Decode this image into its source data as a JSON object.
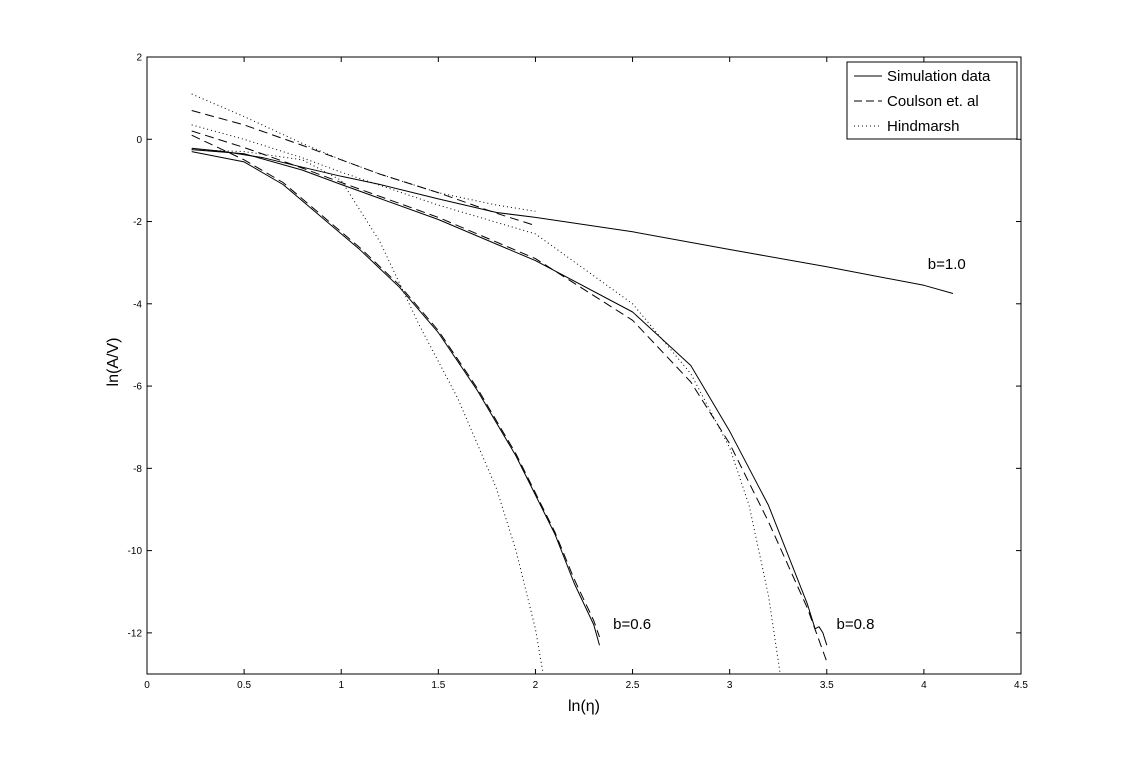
{
  "chart_data": {
    "type": "line",
    "title": "",
    "xlabel": "ln(η)",
    "ylabel": "ln(A/V)",
    "xlim": [
      0,
      4.5
    ],
    "ylim": [
      -13,
      2
    ],
    "xticks": [
      0,
      0.5,
      1,
      1.5,
      2,
      2.5,
      3,
      3.5,
      4,
      4.5
    ],
    "xtick_labels": [
      "0",
      "0.5",
      "1",
      "1.5",
      "2",
      "2.5",
      "3",
      "3.5",
      "4",
      "4.5"
    ],
    "yticks": [
      2,
      0,
      -2,
      -4,
      -6,
      -8,
      -10,
      -12
    ],
    "ytick_labels": [
      "2",
      "0",
      "-2",
      "-4",
      "-6",
      "-8",
      "-10",
      "-12"
    ],
    "grid": false,
    "legend": {
      "position": "top-right",
      "entries": [
        {
          "label": "Simulation data",
          "style": "solid"
        },
        {
          "label": "Coulson et. al",
          "style": "dashed"
        },
        {
          "label": "Hindmarsh",
          "style": "dotted"
        }
      ]
    },
    "annotations": [
      {
        "text": "b=1.0",
        "x": 4.02,
        "y": -3.15
      },
      {
        "text": "b=0.6",
        "x": 2.4,
        "y": -11.9
      },
      {
        "text": "b=0.8",
        "x": 3.55,
        "y": -11.9
      }
    ],
    "series": [
      {
        "group": "b=1.0",
        "style": "solid",
        "x": [
          0.23,
          0.4,
          0.6,
          0.8,
          1.0,
          1.2,
          1.5,
          1.8,
          2.0,
          2.5,
          3.0,
          3.5,
          4.0,
          4.15
        ],
        "y": [
          -0.22,
          -0.3,
          -0.45,
          -0.68,
          -0.9,
          -1.1,
          -1.45,
          -1.78,
          -1.9,
          -2.25,
          -2.68,
          -3.1,
          -3.55,
          -3.75
        ]
      },
      {
        "group": "b=1.0",
        "style": "dashed",
        "x": [
          0.23,
          0.5,
          0.8,
          1.0,
          1.2,
          1.5,
          1.8,
          2.0
        ],
        "y": [
          0.7,
          0.35,
          -0.15,
          -0.5,
          -0.85,
          -1.3,
          -1.8,
          -2.1
        ]
      },
      {
        "group": "b=1.0",
        "style": "dotted",
        "x": [
          0.23,
          0.5,
          0.8,
          1.0,
          1.2,
          1.5,
          1.8,
          2.0
        ],
        "y": [
          1.1,
          0.55,
          -0.1,
          -0.5,
          -0.85,
          -1.3,
          -1.6,
          -1.75
        ]
      },
      {
        "group": "b=0.8",
        "style": "solid",
        "x": [
          0.23,
          0.5,
          0.8,
          1.0,
          1.5,
          2.0,
          2.5,
          2.8,
          3.0,
          3.2,
          3.4,
          3.44,
          3.46,
          3.48,
          3.5
        ],
        "y": [
          -0.25,
          -0.35,
          -0.75,
          -1.1,
          -1.95,
          -2.95,
          -4.2,
          -5.5,
          -7.1,
          -8.9,
          -11.3,
          -11.9,
          -11.85,
          -12.0,
          -12.3
        ]
      },
      {
        "group": "b=0.8",
        "style": "dashed",
        "x": [
          0.23,
          0.5,
          0.8,
          1.0,
          1.5,
          2.0,
          2.5,
          2.8,
          3.0,
          3.2,
          3.4,
          3.5
        ],
        "y": [
          0.2,
          -0.2,
          -0.7,
          -1.05,
          -1.9,
          -2.9,
          -4.4,
          -5.9,
          -7.4,
          -9.3,
          -11.4,
          -12.7
        ]
      },
      {
        "group": "b=0.8",
        "style": "dotted",
        "x": [
          0.23,
          0.5,
          0.8,
          1.0,
          1.5,
          2.0,
          2.5,
          2.8,
          3.0,
          3.1,
          3.2,
          3.26
        ],
        "y": [
          0.35,
          0.0,
          -0.45,
          -0.8,
          -1.6,
          -2.3,
          -4.0,
          -5.7,
          -7.5,
          -8.9,
          -11.1,
          -13.0
        ]
      },
      {
        "group": "b=0.6",
        "style": "solid",
        "x": [
          0.23,
          0.5,
          0.7,
          0.9,
          1.1,
          1.3,
          1.5,
          1.7,
          1.9,
          2.1,
          2.2,
          2.3,
          2.33
        ],
        "y": [
          -0.3,
          -0.55,
          -1.1,
          -1.9,
          -2.7,
          -3.6,
          -4.7,
          -6.1,
          -7.7,
          -9.6,
          -10.8,
          -11.8,
          -12.3
        ]
      },
      {
        "group": "b=0.6",
        "style": "dashed",
        "x": [
          0.23,
          0.5,
          0.7,
          0.9,
          1.1,
          1.3,
          1.5,
          1.7,
          1.9,
          2.1,
          2.2,
          2.3,
          2.33
        ],
        "y": [
          0.1,
          -0.5,
          -1.05,
          -1.85,
          -2.65,
          -3.55,
          -4.65,
          -6.05,
          -7.65,
          -9.55,
          -10.7,
          -11.7,
          -12.1
        ]
      },
      {
        "group": "b=0.6",
        "style": "dotted",
        "x": [
          0.23,
          0.5,
          0.8,
          1.0,
          1.2,
          1.4,
          1.6,
          1.8,
          1.9,
          2.0,
          2.04
        ],
        "y": [
          -0.25,
          -0.3,
          -0.5,
          -1.0,
          -2.5,
          -4.5,
          -6.3,
          -8.5,
          -10.0,
          -11.9,
          -13.0
        ]
      }
    ]
  }
}
